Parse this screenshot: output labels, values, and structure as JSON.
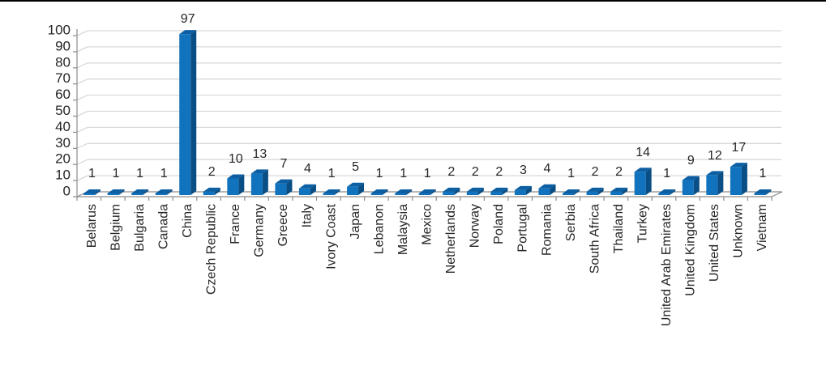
{
  "page": {
    "background_color": "#ffffff",
    "top_border_color": "#000000"
  },
  "chart_data": {
    "type": "bar",
    "style": "3d-clustered-column",
    "title": "",
    "xlabel": "",
    "ylabel": "",
    "legend": "none",
    "grid": "horizontal",
    "ylim": [
      0,
      100
    ],
    "ytick_step": 10,
    "ytick_labels": [
      "0",
      "10",
      "20",
      "30",
      "40",
      "50",
      "60",
      "70",
      "80",
      "90",
      "100"
    ],
    "categories": [
      "Belarus",
      "Belgium",
      "Bulgaria",
      "Canada",
      "China",
      "Czech Republic",
      "France",
      "Germany",
      "Greece",
      "Italy",
      "Ivory Coast",
      "Japan",
      "Lebanon",
      "Malaysia",
      "Mexico",
      "Netherlands",
      "Norway",
      "Poland",
      "Portugal",
      "Romania",
      "Serbia",
      "South Africa",
      "Thailand",
      "Turkey",
      "United Arab Emirates",
      "United Kingdom",
      "United States",
      "Unknown",
      "Vietnam"
    ],
    "values": [
      1,
      1,
      1,
      1,
      97,
      2,
      10,
      13,
      7,
      4,
      1,
      5,
      1,
      1,
      1,
      2,
      2,
      2,
      3,
      4,
      1,
      2,
      2,
      14,
      1,
      9,
      12,
      17,
      1
    ],
    "data_labels_shown": true,
    "colors": {
      "bar_front": "#1173BD",
      "bar_top": "#0D5FA4",
      "bar_side": "#094E84",
      "gridline": "#D9D9D9",
      "axis": "#8C8C8C",
      "floor_fill": "#FFFFFF",
      "label_text": "#262626"
    }
  }
}
